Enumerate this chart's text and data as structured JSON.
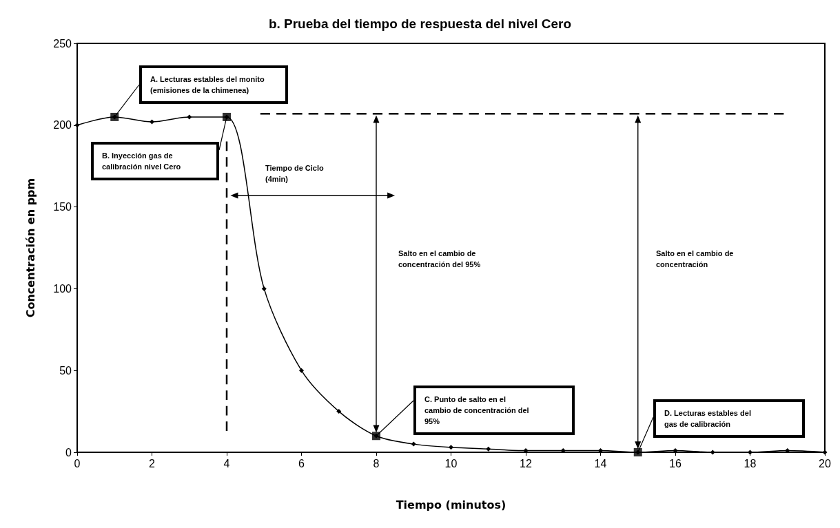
{
  "chart_data": {
    "type": "line",
    "title": "b. Prueba del tiempo de respuesta del nivel Cero",
    "xlabel": "Tiempo (minutos)",
    "ylabel": "Concentración en ppm",
    "x": [
      0,
      1,
      2,
      3,
      4,
      5,
      6,
      7,
      8,
      9,
      10,
      11,
      12,
      13,
      14,
      15,
      16,
      17,
      18,
      19,
      20
    ],
    "xlim": [
      0,
      20
    ],
    "xticks": [
      0,
      2,
      4,
      6,
      8,
      10,
      12,
      14,
      16,
      18,
      20
    ],
    "ylim": [
      0,
      250
    ],
    "yticks": [
      0,
      50,
      100,
      150,
      200,
      250
    ],
    "grid": false,
    "series": [
      {
        "color": "#000000",
        "marker": "diamond",
        "line_style": "solid",
        "values": [
          200,
          205,
          202,
          205,
          205,
          100,
          50,
          25,
          10,
          5,
          3,
          2,
          1,
          1,
          1,
          0,
          1,
          0,
          0,
          1,
          0
        ]
      },
      {
        "type": "line",
        "color": "#000000",
        "marker": "none",
        "line_style": "dashed",
        "x": [
          4.9,
          18.9
        ],
        "values": [
          207,
          207
        ]
      },
      {
        "type": "line",
        "color": "#000000",
        "marker": "none",
        "line_style": "dashed",
        "x": [
          4,
          4
        ],
        "values": [
          13,
          190
        ]
      },
      {
        "type": "scatter",
        "color": "#000000",
        "marker": "square",
        "x": [
          1,
          4,
          8,
          15
        ],
        "values": [
          205,
          205,
          10,
          0
        ]
      }
    ],
    "annotations": [
      "A. Lecturas estables del monito (emisiones de la chimenea)",
      "B. Inyección gas de calibración nivel Cero",
      "C. Punto de salto en el cambio de concentración del 95%",
      "D. Lecturas estables del gas de calibración",
      "Tiempo de Ciclo (4min)",
      "Salto en el cambio de concentración del 95%",
      "Salto en el cambio de concentración"
    ]
  }
}
